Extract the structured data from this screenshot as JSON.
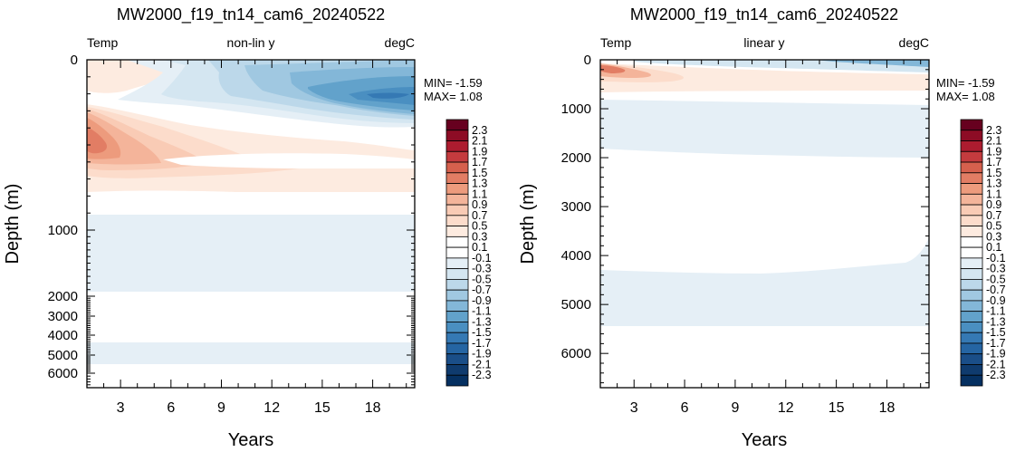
{
  "panels": [
    {
      "title": "MW2000_f19_tn14_cam6_20240522",
      "left_label": "Temp",
      "center_label": "non-lin y",
      "right_label": "degC",
      "min_text": "MIN= -1.59",
      "max_text": "MAX=  1.08",
      "xlabel": "Years",
      "ylabel": "Depth (m)",
      "x_ticks": [
        3,
        6,
        9,
        12,
        15,
        18
      ],
      "y_ticks": [
        0,
        1000,
        2000,
        3000,
        4000,
        5000,
        6000
      ],
      "y_scale": "non-linear",
      "ylim": [
        0,
        6500
      ],
      "xlim": [
        1,
        20.5
      ]
    },
    {
      "title": "MW2000_f19_tn14_cam6_20240522",
      "left_label": "Temp",
      "center_label": "linear y",
      "right_label": "degC",
      "min_text": "MIN= -1.59",
      "max_text": "MAX=  1.08",
      "xlabel": "Years",
      "ylabel": "Depth (m)",
      "x_ticks": [
        3,
        6,
        9,
        12,
        15,
        18
      ],
      "y_ticks": [
        0,
        1000,
        2000,
        3000,
        4000,
        5000,
        6000
      ],
      "y_scale": "linear",
      "ylim": [
        0,
        6700
      ],
      "xlim": [
        1,
        20.5
      ]
    }
  ],
  "colorbar": {
    "labels": [
      "2.3",
      "2.1",
      "1.9",
      "1.7",
      "1.5",
      "1.3",
      "1.1",
      "0.9",
      "0.7",
      "0.5",
      "0.3",
      "0.1",
      "-0.1",
      "-0.3",
      "-0.5",
      "-0.7",
      "-0.9",
      "-1.1",
      "-1.3",
      "-1.5",
      "-1.7",
      "-1.9",
      "-2.1",
      "-2.3"
    ],
    "colors": [
      "#67001f",
      "#8d0c25",
      "#ad1c2f",
      "#c43b3e",
      "#d6604d",
      "#e27d64",
      "#ed9b7d",
      "#f4b49a",
      "#f9cbb5",
      "#fcdccb",
      "#fdebe0",
      "#ffffff",
      "#ffffff",
      "#e5eff6",
      "#d4e6f1",
      "#bcd8ea",
      "#a0c8e1",
      "#83b7d8",
      "#62a2cb",
      "#4a8fc1",
      "#3579b4",
      "#2565a3",
      "#1a4e88",
      "#0f3b6e",
      "#053061"
    ]
  },
  "chart_data": [
    {
      "type": "heatmap",
      "title": "MW2000_f19_tn14_cam6_20240522",
      "subtitle_left": "Temp",
      "subtitle_center": "non-lin y",
      "subtitle_right": "degC",
      "xlabel": "Years",
      "ylabel": "Depth (m)",
      "xlim": [
        1,
        20.5
      ],
      "y_scale": "non-linear",
      "min": -1.59,
      "max": 1.08,
      "regions": [
        {
          "value": 0.3,
          "x": [
            1,
            20.5
          ],
          "depth": [
            260,
            720
          ]
        },
        {
          "value": 0.6,
          "x": [
            1,
            11
          ],
          "depth": [
            280,
            620
          ]
        },
        {
          "value": 0.9,
          "x": [
            1,
            6.5
          ],
          "depth": [
            300,
            580
          ]
        },
        {
          "value": 1.05,
          "x": [
            1,
            2.5
          ],
          "depth": [
            360,
            520
          ]
        },
        {
          "value": 0.3,
          "x": [
            1,
            8
          ],
          "depth": [
            0,
            160
          ]
        },
        {
          "value": -0.2,
          "x": [
            4,
            20.5
          ],
          "depth": [
            0,
            230
          ]
        },
        {
          "value": -0.6,
          "x": [
            8,
            20.5
          ],
          "depth": [
            20,
            240
          ]
        },
        {
          "value": -1.0,
          "x": [
            12,
            20.5
          ],
          "depth": [
            40,
            220
          ]
        },
        {
          "value": -1.4,
          "x": [
            15,
            20.5
          ],
          "depth": [
            80,
            200
          ]
        },
        {
          "value": -1.59,
          "x": [
            17,
            20
          ],
          "depth": [
            130,
            180
          ]
        },
        {
          "value": -0.2,
          "x": [
            1,
            20.5
          ],
          "depth": [
            880,
            1900
          ]
        },
        {
          "value": -0.2,
          "x": [
            1,
            20.5
          ],
          "depth": [
            4300,
            5500
          ]
        }
      ]
    },
    {
      "type": "heatmap",
      "title": "MW2000_f19_tn14_cam6_20240522",
      "subtitle_left": "Temp",
      "subtitle_center": "linear y",
      "subtitle_right": "degC",
      "xlabel": "Years",
      "ylabel": "Depth (m)",
      "xlim": [
        1,
        20.5
      ],
      "ylim": [
        0,
        6700
      ],
      "y_scale": "linear",
      "min": -1.59,
      "max": 1.08,
      "regions": [
        {
          "value": 0.3,
          "x": [
            1,
            20.5
          ],
          "depth": [
            200,
            650
          ]
        },
        {
          "value": 0.6,
          "x": [
            1,
            6
          ],
          "depth": [
            150,
            400
          ]
        },
        {
          "value": 0.9,
          "x": [
            1,
            2.5
          ],
          "depth": [
            120,
            280
          ]
        },
        {
          "value": -0.3,
          "x": [
            4,
            20.5
          ],
          "depth": [
            0,
            80
          ]
        },
        {
          "value": -0.8,
          "x": [
            14,
            20.5
          ],
          "depth": [
            0,
            60
          ]
        },
        {
          "value": -0.2,
          "x": [
            1,
            20.5
          ],
          "depth": [
            850,
            1900
          ]
        },
        {
          "value": -0.2,
          "x": [
            1,
            20.5
          ],
          "depth": [
            4300,
            5500
          ]
        }
      ]
    }
  ]
}
